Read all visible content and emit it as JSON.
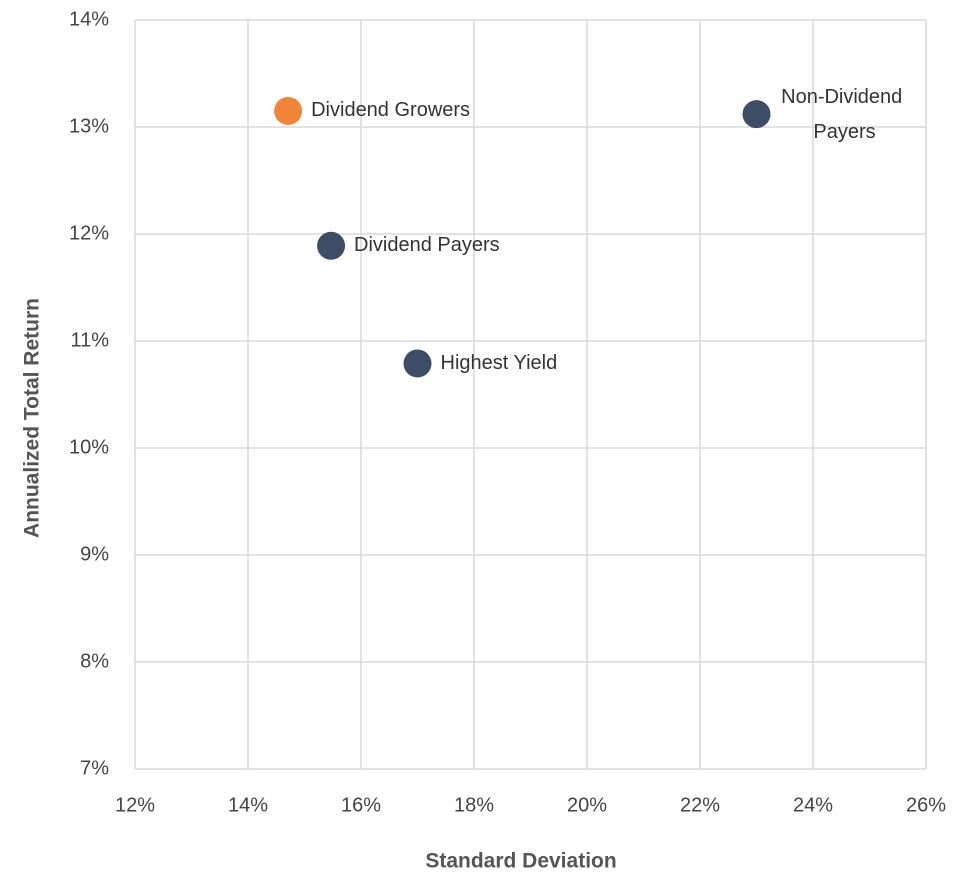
{
  "chart_data": {
    "type": "scatter",
    "xlabel": "Standard Deviation",
    "ylabel": "Annualized Total Return",
    "labels": [
      "Dividend Growers",
      "Dividend Payers",
      "Highest Yield",
      "Non-Dividend Payers"
    ],
    "x": [
      14.71,
      15.47,
      17.0,
      23.0
    ],
    "values": [
      13.15,
      11.89,
      10.79,
      13.12
    ],
    "colors": [
      "#f08537",
      "#3e4d66",
      "#3e4d66",
      "#3e4d66"
    ],
    "xlim": [
      12,
      26
    ],
    "xticks": [
      {
        "value": 12,
        "label": "12%"
      },
      {
        "value": 14,
        "label": "14%"
      },
      {
        "value": 16,
        "label": "16%"
      },
      {
        "value": 18,
        "label": "18%"
      },
      {
        "value": 20,
        "label": "20%"
      },
      {
        "value": 22,
        "label": "22%"
      },
      {
        "value": 24,
        "label": "24%"
      },
      {
        "value": 26,
        "label": "26%"
      }
    ],
    "ylim": [
      7,
      14
    ],
    "yticks": [
      {
        "value": 7,
        "label": "7%"
      },
      {
        "value": 8,
        "label": "8%"
      },
      {
        "value": 9,
        "label": "9%"
      },
      {
        "value": 10,
        "label": "10%"
      },
      {
        "value": 11,
        "label": "11%"
      },
      {
        "value": 12,
        "label": "12%"
      },
      {
        "value": 13,
        "label": "13%"
      },
      {
        "value": 14,
        "label": "14%"
      }
    ],
    "grid": true
  }
}
